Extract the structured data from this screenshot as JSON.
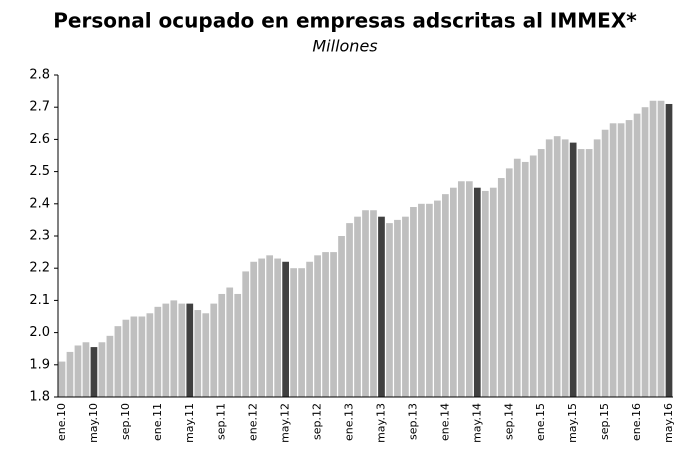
{
  "chart_data": {
    "type": "bar",
    "title": "Personal ocupado en empresas adscritas al IMMEX*",
    "subtitle": "Millones",
    "categories": [
      "ene.10",
      null,
      null,
      null,
      "may.10",
      null,
      null,
      null,
      "sep.10",
      null,
      null,
      null,
      "ene.11",
      null,
      null,
      null,
      "may.11",
      null,
      null,
      null,
      "sep.11",
      null,
      null,
      null,
      "ene.12",
      null,
      null,
      null,
      "may.12",
      null,
      null,
      null,
      "sep.12",
      null,
      null,
      null,
      "ene.13",
      null,
      null,
      null,
      "may.13",
      null,
      null,
      null,
      "sep.13",
      null,
      null,
      null,
      "ene.14",
      null,
      null,
      null,
      "may.14",
      null,
      null,
      null,
      "sep.14",
      null,
      null,
      null,
      "ene.15",
      null,
      null,
      null,
      "may.15",
      null,
      null,
      null,
      "sep.15",
      null,
      null,
      null,
      "ene.16",
      null,
      null,
      null,
      "may.16"
    ],
    "values": [
      1.91,
      1.94,
      1.96,
      1.97,
      1.955,
      1.97,
      1.99,
      2.02,
      2.04,
      2.05,
      2.05,
      2.06,
      2.08,
      2.09,
      2.1,
      2.09,
      2.09,
      2.07,
      2.06,
      2.09,
      2.12,
      2.14,
      2.12,
      2.19,
      2.22,
      2.23,
      2.24,
      2.23,
      2.22,
      2.2,
      2.2,
      2.22,
      2.24,
      2.25,
      2.25,
      2.3,
      2.34,
      2.36,
      2.38,
      2.38,
      2.36,
      2.34,
      2.35,
      2.36,
      2.39,
      2.4,
      2.4,
      2.41,
      2.43,
      2.45,
      2.47,
      2.47,
      2.45,
      2.44,
      2.45,
      2.48,
      2.51,
      2.54,
      2.53,
      2.55,
      2.57,
      2.6,
      2.61,
      2.6,
      2.59,
      2.57,
      2.57,
      2.6,
      2.63,
      2.65,
      2.65,
      2.66,
      2.68,
      2.7,
      2.72,
      2.72,
      2.71
    ],
    "colors": [
      "#bfbfbf",
      "#bfbfbf",
      "#bfbfbf",
      "#bfbfbf",
      "#404040",
      "#bfbfbf",
      "#bfbfbf",
      "#bfbfbf",
      "#bfbfbf",
      "#bfbfbf",
      "#bfbfbf",
      "#bfbfbf",
      "#bfbfbf",
      "#bfbfbf",
      "#bfbfbf",
      "#bfbfbf",
      "#404040",
      "#bfbfbf",
      "#bfbfbf",
      "#bfbfbf",
      "#bfbfbf",
      "#bfbfbf",
      "#bfbfbf",
      "#bfbfbf",
      "#bfbfbf",
      "#bfbfbf",
      "#bfbfbf",
      "#bfbfbf",
      "#404040",
      "#bfbfbf",
      "#bfbfbf",
      "#bfbfbf",
      "#bfbfbf",
      "#bfbfbf",
      "#bfbfbf",
      "#bfbfbf",
      "#bfbfbf",
      "#bfbfbf",
      "#bfbfbf",
      "#bfbfbf",
      "#404040",
      "#bfbfbf",
      "#bfbfbf",
      "#bfbfbf",
      "#bfbfbf",
      "#bfbfbf",
      "#bfbfbf",
      "#bfbfbf",
      "#bfbfbf",
      "#bfbfbf",
      "#bfbfbf",
      "#bfbfbf",
      "#404040",
      "#bfbfbf",
      "#bfbfbf",
      "#bfbfbf",
      "#bfbfbf",
      "#bfbfbf",
      "#bfbfbf",
      "#bfbfbf",
      "#bfbfbf",
      "#bfbfbf",
      "#bfbfbf",
      "#bfbfbf",
      "#404040",
      "#bfbfbf",
      "#bfbfbf",
      "#bfbfbf",
      "#bfbfbf",
      "#bfbfbf",
      "#bfbfbf",
      "#bfbfbf",
      "#bfbfbf",
      "#bfbfbf",
      "#bfbfbf",
      "#bfbfbf",
      "#404040"
    ],
    "ylim": [
      1.8,
      2.8
    ],
    "yticks": [
      1.8,
      1.9,
      {
        "value": 2,
        "label": "2.0"
      },
      2.1,
      2.2,
      2.3,
      2.4,
      2.5,
      2.6,
      2.7,
      2.8
    ],
    "grid": false
  }
}
